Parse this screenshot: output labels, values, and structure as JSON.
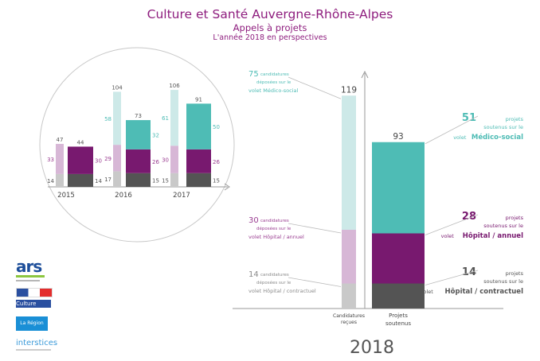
{
  "header": {
    "title": "Culture et Santé Auvergne-Rhône-Alpes",
    "subtitle": "Appels à projets",
    "subtitle2": "L'année 2018 en perspectives"
  },
  "colors": {
    "medico_received": "#cde9e8",
    "medico_supported": "#4ebcb5",
    "hopital_received": "#d7b7d6",
    "hopital_supported": "#78196f",
    "contract_received": "#c9c9c9",
    "contract_supported": "#545454",
    "title": "#8e1d7e"
  },
  "chart_data": [
    {
      "type": "bar",
      "stacked": true,
      "categories": [
        "2015",
        "2016",
        "2017"
      ],
      "groups": [
        "received",
        "supported"
      ],
      "series": [
        {
          "key": "contract",
          "received": [
            14,
            17,
            15
          ],
          "supported": [
            14,
            15,
            15
          ]
        },
        {
          "key": "hopital",
          "received": [
            33,
            29,
            30
          ],
          "supported": [
            30,
            26,
            26
          ]
        },
        {
          "key": "medico",
          "received": [
            0,
            58,
            61
          ],
          "supported": [
            0,
            32,
            50
          ]
        }
      ],
      "totals": {
        "received": [
          47,
          104,
          106
        ],
        "supported": [
          44,
          73,
          91
        ]
      }
    },
    {
      "type": "bar",
      "stacked": true,
      "title": "2018",
      "categories": [
        "Candidatures reçues",
        "Projets soutenus"
      ],
      "series": [
        {
          "key": "contract",
          "values": [
            14,
            14
          ]
        },
        {
          "key": "hopital",
          "values": [
            30,
            28
          ]
        },
        {
          "key": "medico",
          "values": [
            75,
            51
          ]
        }
      ],
      "totals": [
        119,
        93
      ],
      "annotations_left": [
        {
          "number": "75",
          "line1": "candidatures",
          "line2": "déposées sur le",
          "line3": "volet Médico-social"
        },
        {
          "number": "30",
          "line1": "candidatures",
          "line2": "déposées sur le",
          "line3": "volet Hôpital / annuel"
        },
        {
          "number": "14",
          "line1": "candidatures",
          "line2": "déposées sur le",
          "line3": "volet Hôpital / contractuel"
        }
      ],
      "annotations_right": [
        {
          "number": "51",
          "word": "projets",
          "line2": "soutenus sur le",
          "volet": "volet",
          "name": "Médico-social"
        },
        {
          "number": "28",
          "word": "projets",
          "line2": "soutenus sur le",
          "volet": "volet",
          "name": "Hôpital / annuel"
        },
        {
          "number": "14",
          "word": "projets",
          "line2": "soutenus sur le",
          "volet": "volet",
          "name": "Hôpital / contractuel"
        }
      ],
      "xlabels": {
        "received_line1": "Candidatures",
        "received_line2": "reçues",
        "supported_line1": "Projets",
        "supported_line2": "soutenus"
      }
    }
  ],
  "logos": {
    "ars": "ars",
    "culture": "Culture",
    "region": "La Région",
    "interstices": "interstices"
  }
}
